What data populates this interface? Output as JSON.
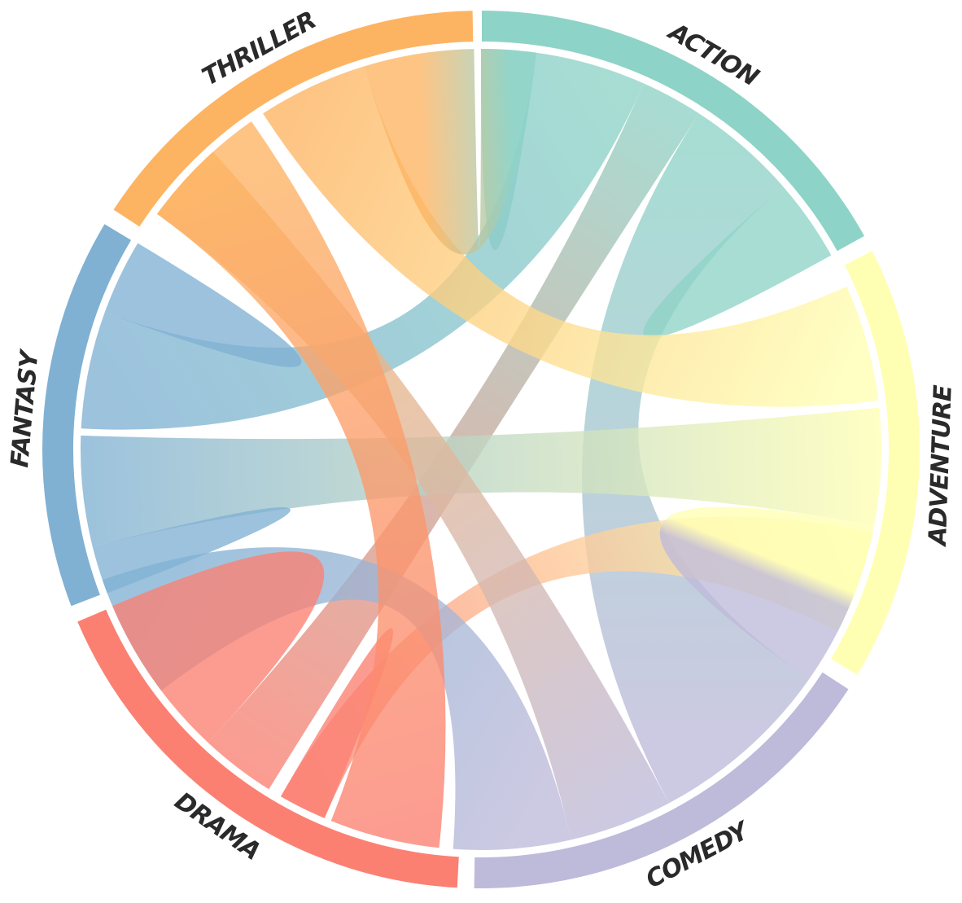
{
  "diagram": {
    "type": "chord",
    "groups": [
      {
        "id": "action",
        "label": "ACTION",
        "color": "#8ed3c7",
        "start": 0,
        "end": 61
      },
      {
        "id": "adventure",
        "label": "ADVENTURE",
        "color": "#ffffb3",
        "start": 63,
        "end": 121
      },
      {
        "id": "comedy",
        "label": "COMEDY",
        "color": "#bebada",
        "start": 123,
        "end": 181
      },
      {
        "id": "drama",
        "label": "DRAMA",
        "color": "#fb8072",
        "start": 183,
        "end": 247
      },
      {
        "id": "fantasy",
        "label": "FANTASY",
        "color": "#80b1d3",
        "start": 249,
        "end": 301
      },
      {
        "id": "thriller",
        "label": "THRILLER",
        "color": "#fdb462",
        "start": 303,
        "end": 359
      }
    ],
    "chords": [
      {
        "source": "action",
        "s": [
          0,
          8
        ],
        "target": "action",
        "t": [
          0,
          8
        ]
      },
      {
        "source": "action",
        "s": [
          8,
          24
        ],
        "target": "fantasy",
        "t": [
          273,
          290
        ]
      },
      {
        "source": "action",
        "s": [
          24,
          33
        ],
        "target": "drama",
        "t": [
          212,
          223
        ]
      },
      {
        "source": "action",
        "s": [
          33,
          49
        ],
        "target": "comedy",
        "t": [
          125,
          152
        ]
      },
      {
        "source": "action",
        "s": [
          49,
          61
        ],
        "target": "action",
        "t": [
          49,
          61
        ]
      },
      {
        "source": "adventure",
        "s": [
          66,
          83
        ],
        "target": "thriller",
        "t": [
          327,
          343
        ]
      },
      {
        "source": "adventure",
        "s": [
          84,
          101
        ],
        "target": "fantasy",
        "t": [
          256,
          272
        ]
      },
      {
        "source": "adventure",
        "s": [
          102,
          117
        ],
        "target": "drama",
        "t": [
          203,
          210
        ]
      },
      {
        "source": "adventure",
        "s": [
          101,
          121
        ],
        "target": "comedy",
        "t": [
          102,
          125
        ]
      },
      {
        "source": "comedy",
        "s": [
          152,
          167
        ],
        "target": "thriller",
        "t": [
          306,
          318
        ]
      },
      {
        "source": "comedy",
        "s": [
          167,
          184
        ],
        "target": "fantasy",
        "t": [
          233,
          251
        ]
      },
      {
        "source": "drama",
        "s": [
          203,
          210
        ],
        "target": "drama",
        "t": [
          203,
          210
        ]
      },
      {
        "source": "drama",
        "s": [
          186,
          202
        ],
        "target": "thriller",
        "t": [
          306,
          325
        ]
      },
      {
        "source": "drama",
        "s": [
          223,
          247
        ],
        "target": "drama",
        "t": [
          223,
          247
        ]
      },
      {
        "source": "fantasy",
        "s": [
          249,
          256
        ],
        "target": "fantasy",
        "t": [
          249,
          256
        ]
      },
      {
        "source": "fantasy",
        "s": [
          290,
          301
        ],
        "target": "fantasy",
        "t": [
          290,
          301
        ]
      },
      {
        "source": "thriller",
        "s": [
          343,
          359
        ],
        "target": "action",
        "t": [
          0,
          8
        ]
      }
    ]
  }
}
